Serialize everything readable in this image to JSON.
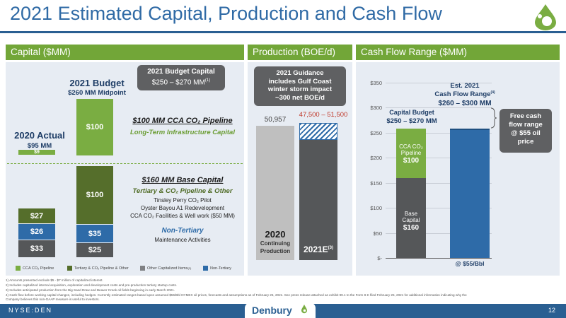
{
  "title": "2021 Estimated Capital, Production and Cash Flow",
  "sections": {
    "capital": "Capital ($MM)",
    "production": "Production (BOE/d)",
    "cashflow": "Cash Flow Range ($MM)"
  },
  "capital_panel": {
    "budget_heading": "2021 Budget",
    "budget_sub": "$260 MM Midpoint",
    "actual_heading": "2020 Actual",
    "actual_sub": "$95 MM",
    "callout_title": "2021 Budget Capital",
    "callout_range": "$250 – $270 MM",
    "callout_sup": "(1)",
    "cca_title": "$100 MM CCA CO₂ Pipeline",
    "cca_sub": "Long-Term Infrastructure Capital",
    "base_title": "$160 MM Base Capital",
    "base_sub": "Tertiary & CO₂ Pipeline & Other",
    "base_items": [
      "Tinsley Perry CO₂ Pilot",
      "Oyster Bayou A1 Redevelopment",
      "CCA CO₂ Facilities & Well work ($50 MM)"
    ],
    "nontertiary_title": "Non-Tertiary",
    "nontertiary_sub": "Maintenance Activities",
    "bars_2020": [
      "$33",
      "$26",
      "$27",
      "$9"
    ],
    "bars_2021": [
      "$25",
      "$35",
      "$100",
      "$100"
    ],
    "legend": [
      "CCA CO₂ Pipeline",
      "Tertiary & CO₂ Pipeline & Other",
      "Other Capitalized Items",
      "Non-Tertiary"
    ],
    "legend_sup": "(2)"
  },
  "production_panel": {
    "callout": [
      "2021 Guidance",
      "includes Gulf Coast",
      "winter storm impact",
      "~300 net BOE/d"
    ],
    "val_2020": "50,957",
    "val_2021": "47,500 – 51,500",
    "label_2020": "2020",
    "label_2020_sub": [
      "Continuing",
      "Production"
    ],
    "label_2021": "2021E",
    "label_2021_sup": "(3)"
  },
  "cashflow_panel": {
    "yticks": [
      "$350",
      "$300",
      "$250",
      "$200",
      "$150",
      "$100",
      "$50",
      "$-"
    ],
    "capital_budget_label": "Capital Budget",
    "capital_budget_range": "$250 – $270 MM",
    "est_label": "Est. 2021",
    "cfr_label": "Cash Flow Range",
    "cfr_sup": "(4)",
    "cfr_range": "$260 – $300 MM",
    "cca_bar": [
      "CCA CO₂",
      "Pipeline",
      "$100"
    ],
    "base_bar": [
      "Base",
      "Capital",
      "$160"
    ],
    "price_label": "@ $55/Bbl",
    "free_cash": [
      "Free cash",
      "flow range",
      "@ $55 oil",
      "price"
    ]
  },
  "footnotes": [
    "1)    Amounts presented exclude $5 - $7 million of capitalized interest.",
    "2)    Includes capitalized internal acquisition, exploration and development costs and pre-production tertiary startup costs.",
    "3)    Includes anticipated production from the Big Sand Draw and Beaver Creek oil fields beginning in early March 2021.",
    "4)    Cash flow before working capital changes, including hedges.  Currently estimated ranges based upon assumed $55/Bbl NYMEX oil prices, forecasts and assumptions as of February 25, 2021. See press release attached as exhibit 99.1 to the Form 8-K filed February 25, 2021 for additional information indicating why the",
    "       Company believes this non-GAAP measure is useful to investors."
  ],
  "footer": {
    "ticker": "NYSE:DEN",
    "brand": "Denbury",
    "page": "12"
  }
}
